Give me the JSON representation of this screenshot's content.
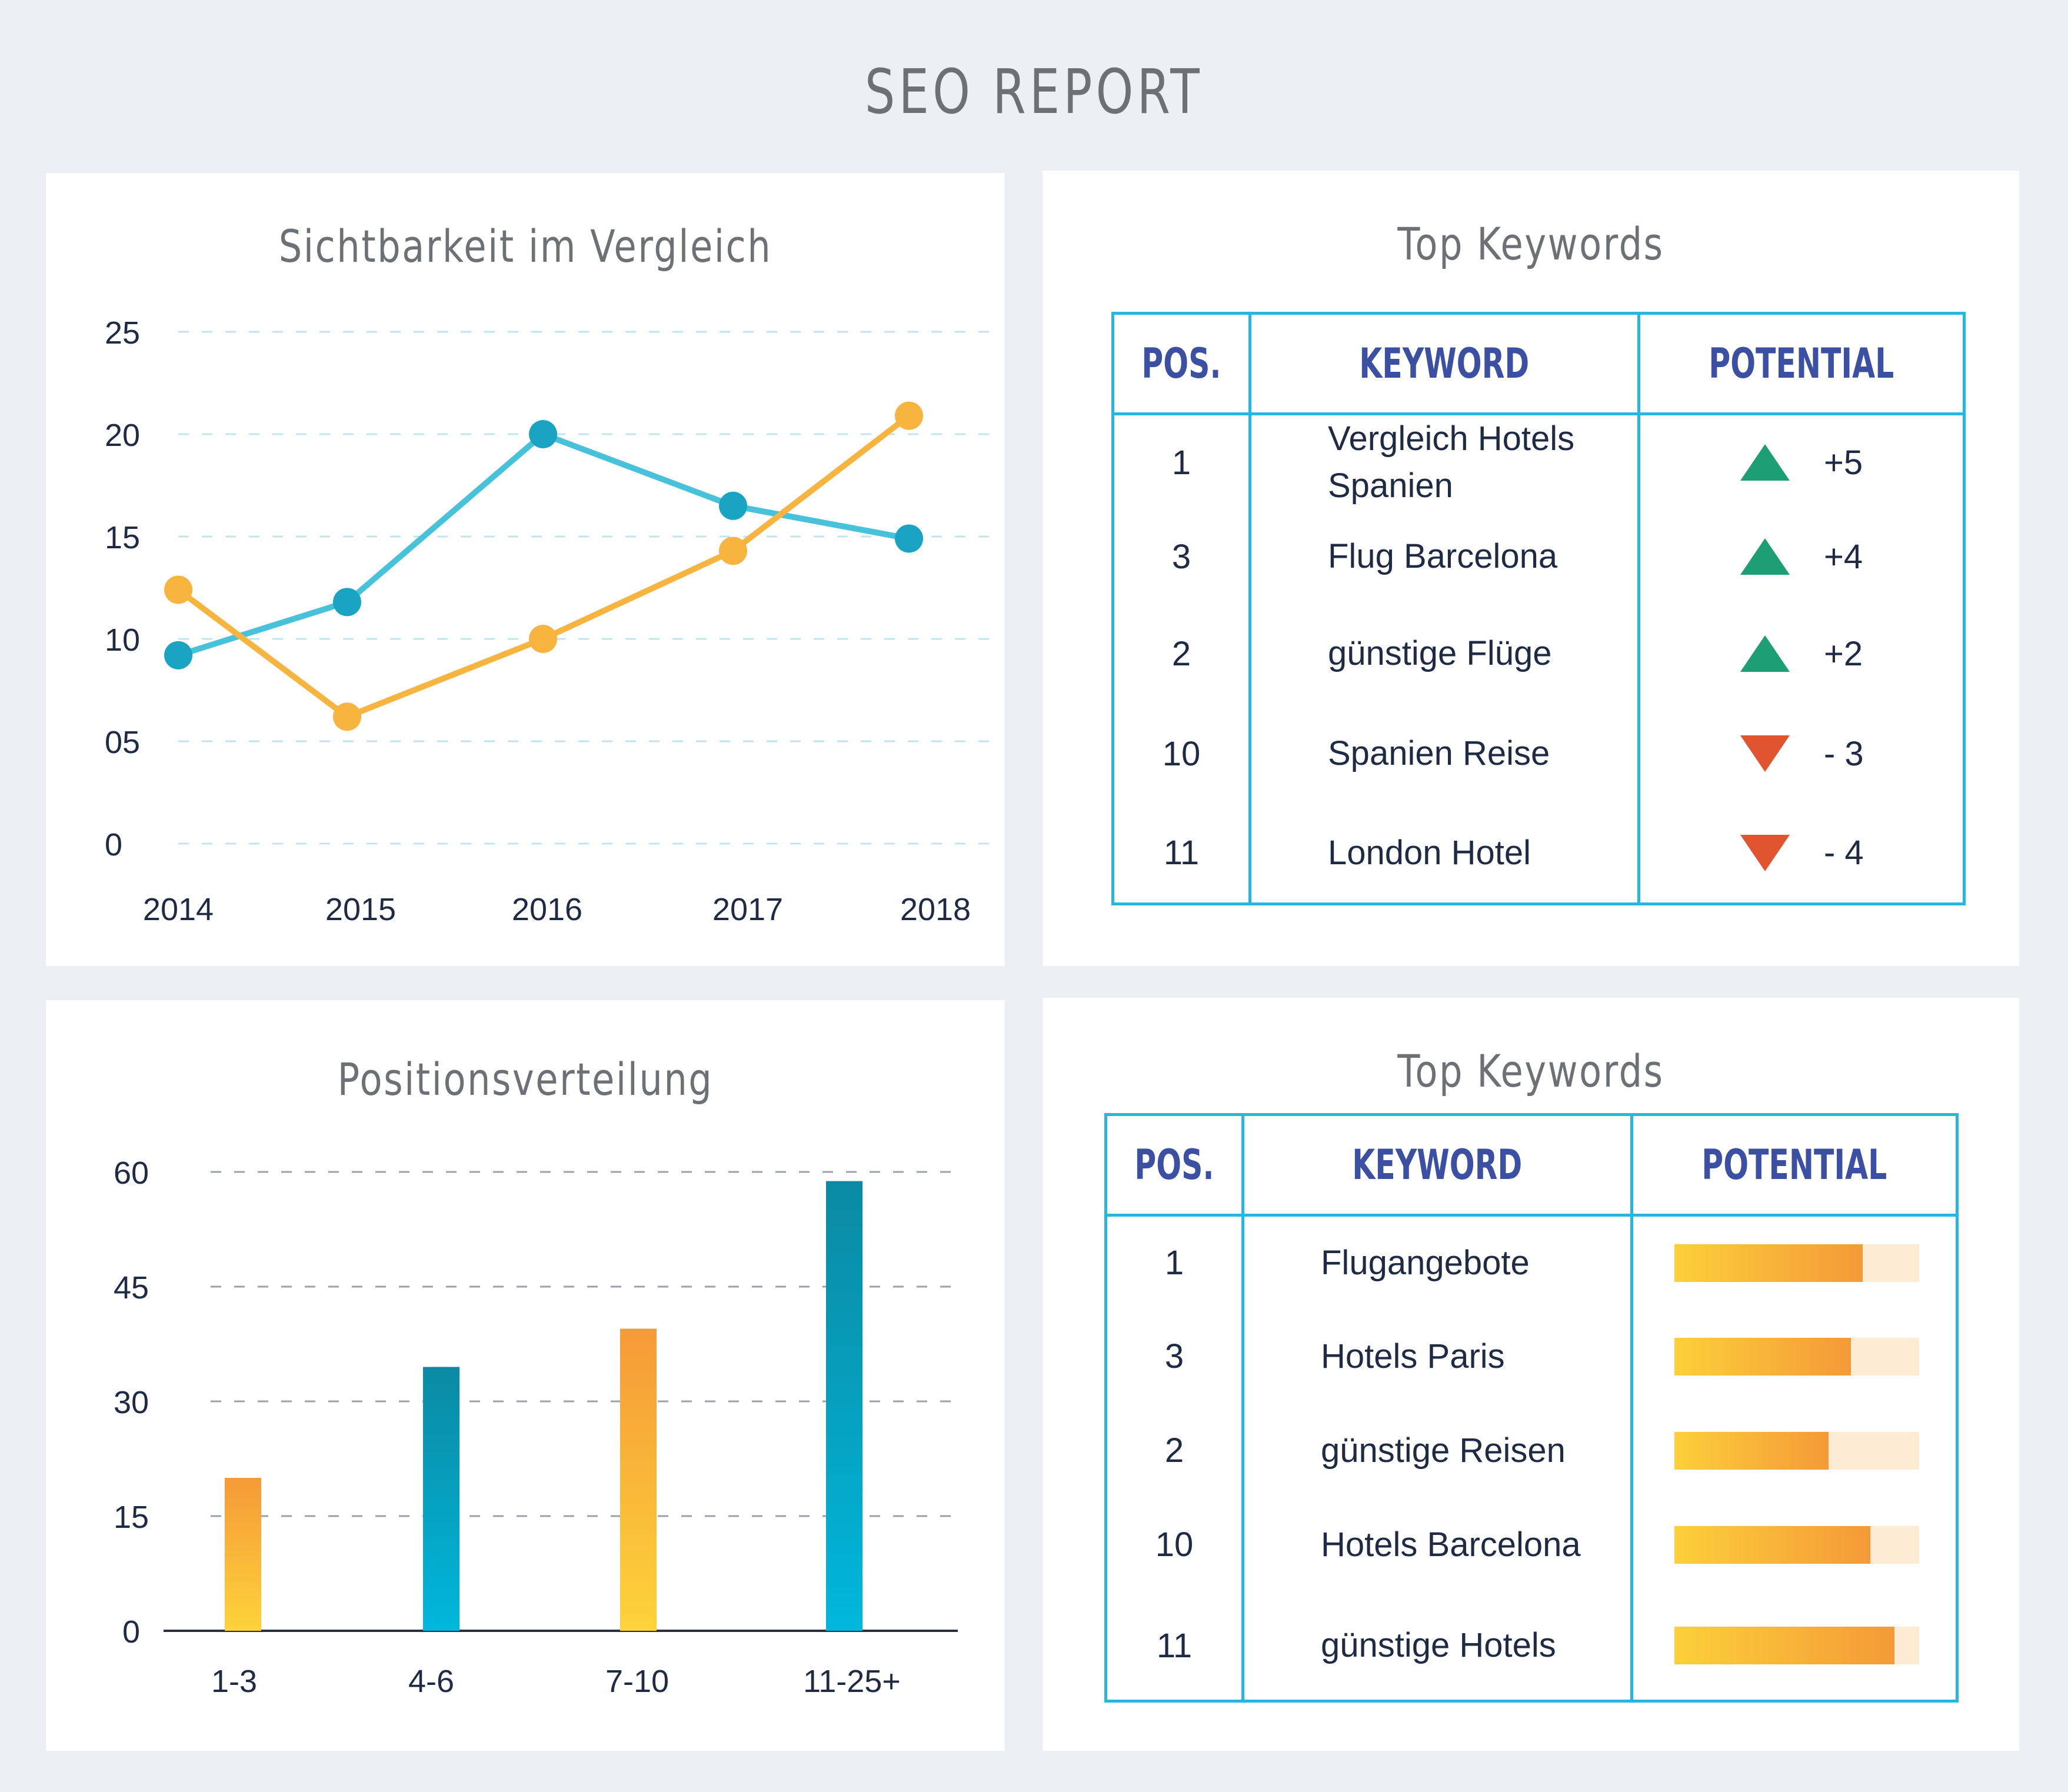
{
  "page": {
    "title": "SEO REPORT"
  },
  "visibility_chart": {
    "title": "Sichtbarkeit im Vergleich"
  },
  "position_chart": {
    "title": "Positionsverteilung"
  },
  "top_keywords_1": {
    "title": "Top Keywords",
    "headers": [
      "POS.",
      "KEYWORD",
      "POTENTIAL"
    ],
    "rows": [
      {
        "pos": "1",
        "keyword": "Vergleich Hotels Spanien",
        "potential": "+5",
        "direction": "up"
      },
      {
        "pos": "3",
        "keyword": "Flug Barcelona",
        "potential": "+4",
        "direction": "up"
      },
      {
        "pos": "2",
        "keyword": "günstige Flüge",
        "potential": "+2",
        "direction": "up"
      },
      {
        "pos": "10",
        "keyword": "Spanien Reise",
        "potential": "- 3",
        "direction": "down"
      },
      {
        "pos": "11",
        "keyword": "London Hotel",
        "potential": "- 4",
        "direction": "down"
      }
    ]
  },
  "top_keywords_2": {
    "title": "Top Keywords",
    "headers": [
      "POS.",
      "KEYWORD",
      "POTENTIAL"
    ],
    "rows": [
      {
        "pos": "1",
        "keyword": "Flugangebote",
        "potential_fraction": 0.77
      },
      {
        "pos": "3",
        "keyword": "Hotels Paris",
        "potential_fraction": 0.72
      },
      {
        "pos": "2",
        "keyword": "günstige Reisen",
        "potential_fraction": 0.63
      },
      {
        "pos": "10",
        "keyword": "Hotels Barcelona",
        "potential_fraction": 0.8
      },
      {
        "pos": "11",
        "keyword": "günstige Hotels",
        "potential_fraction": 0.9
      }
    ]
  },
  "colors": {
    "orange": "#f7b43e",
    "teal": "#1aa3c2",
    "line_blue": "#48c2db",
    "table_border": "#26b6e0",
    "header_text": "#3b4fa3",
    "up": "#1e9e74",
    "down": "#e05530"
  },
  "chart_data": [
    {
      "type": "line",
      "title": "Sichtbarkeit im Vergleich",
      "x": [
        "2014",
        "2015",
        "2016",
        "2017",
        "2018"
      ],
      "y_ticks": [
        "0",
        "05",
        "10",
        "15",
        "20",
        "25"
      ],
      "ylim": [
        0,
        25
      ],
      "grid": true,
      "series": [
        {
          "color": "#48c2db",
          "marker": "#1aa3c2",
          "values": [
            9.2,
            11.8,
            20.0,
            16.5,
            14.9
          ]
        },
        {
          "color": "#f7b43e",
          "marker": "#f7b43e",
          "values": [
            12.4,
            6.2,
            10.0,
            14.3,
            20.9
          ]
        }
      ]
    },
    {
      "type": "bar",
      "title": "Positionsverteilung",
      "categories": [
        "1-3",
        "4-6",
        "7-10",
        "11-25+"
      ],
      "values": [
        20,
        34.5,
        39.5,
        58.8
      ],
      "colors": [
        "orange",
        "teal",
        "orange",
        "teal"
      ],
      "y_ticks": [
        "0",
        "15",
        "30",
        "45",
        "60"
      ],
      "ylim": [
        0,
        60
      ],
      "grid": true
    }
  ]
}
